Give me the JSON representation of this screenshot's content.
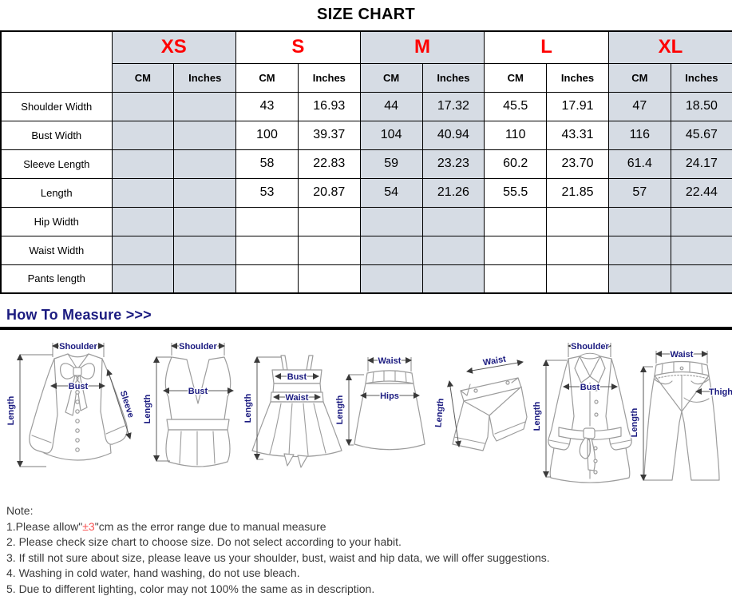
{
  "title": "SIZE CHART",
  "table": {
    "sizes": [
      {
        "label": "XS",
        "shaded": true
      },
      {
        "label": "S",
        "shaded": false
      },
      {
        "label": "M",
        "shaded": true
      },
      {
        "label": "L",
        "shaded": false
      },
      {
        "label": "XL",
        "shaded": true
      }
    ],
    "unit_headers": [
      "CM",
      "Inches"
    ],
    "rows": [
      {
        "label": "Shoulder Width",
        "values": [
          "",
          "",
          "43",
          "16.93",
          "44",
          "17.32",
          "45.5",
          "17.91",
          "47",
          "18.50"
        ]
      },
      {
        "label": "Bust Width",
        "values": [
          "",
          "",
          "100",
          "39.37",
          "104",
          "40.94",
          "110",
          "43.31",
          "116",
          "45.67"
        ]
      },
      {
        "label": "Sleeve Length",
        "values": [
          "",
          "",
          "58",
          "22.83",
          "59",
          "23.23",
          "60.2",
          "23.70",
          "61.4",
          "24.17"
        ]
      },
      {
        "label": "Length",
        "values": [
          "",
          "",
          "53",
          "20.87",
          "54",
          "21.26",
          "55.5",
          "21.85",
          "57",
          "22.44"
        ]
      },
      {
        "label": "Hip Width",
        "values": [
          "",
          "",
          "",
          "",
          "",
          "",
          "",
          "",
          "",
          ""
        ]
      },
      {
        "label": "Waist Width",
        "values": [
          "",
          "",
          "",
          "",
          "",
          "",
          "",
          "",
          "",
          ""
        ]
      },
      {
        "label": "Pants length",
        "values": [
          "",
          "",
          "",
          "",
          "",
          "",
          "",
          "",
          "",
          ""
        ]
      }
    ]
  },
  "measure": {
    "heading": "How To Measure >>>",
    "figures": [
      {
        "name": "blouse",
        "labels": {
          "shoulder": "Shoulder",
          "length": "Length",
          "bust": "Bust",
          "sleeve": "Sleeve"
        }
      },
      {
        "name": "tank-top",
        "labels": {
          "shoulder": "Shoulder",
          "length": "Length",
          "bust": "Bust"
        }
      },
      {
        "name": "strap-dress",
        "labels": {
          "length": "Length",
          "bust": "Bust",
          "waist": "Waist"
        }
      },
      {
        "name": "skirt",
        "labels": {
          "waist": "Waist",
          "length": "Length",
          "hips": "Hips"
        }
      },
      {
        "name": "shorts",
        "labels": {
          "waist": "Waist",
          "length": "Length"
        }
      },
      {
        "name": "coat",
        "labels": {
          "shoulder": "Shoulder",
          "length": "Length",
          "bust": "Bust"
        }
      },
      {
        "name": "pants",
        "labels": {
          "waist": "Waist",
          "length": "Length",
          "thigh": "Thigh"
        }
      }
    ]
  },
  "notes": {
    "title": "Note:",
    "item1": {
      "pre": "1.Please allow\"",
      "red": "±3",
      "post": "\"cm as the error range due to manual measure"
    },
    "items": [
      "2. Please check size chart to choose size. Do not select according to your habit.",
      "3. If still not sure about size, please leave us your shoulder, bust, waist and hip data, we will offer suggestions.",
      "4. Washing in cold water, hand washing, do not use bleach.",
      "5. Due to different lighting, color may not 100% the same as in description."
    ]
  },
  "colors": {
    "accent_red": "#ff0000",
    "note_red": "#f75353",
    "navy": "#1b1b80",
    "shaded_cell": "#d6dce4"
  }
}
